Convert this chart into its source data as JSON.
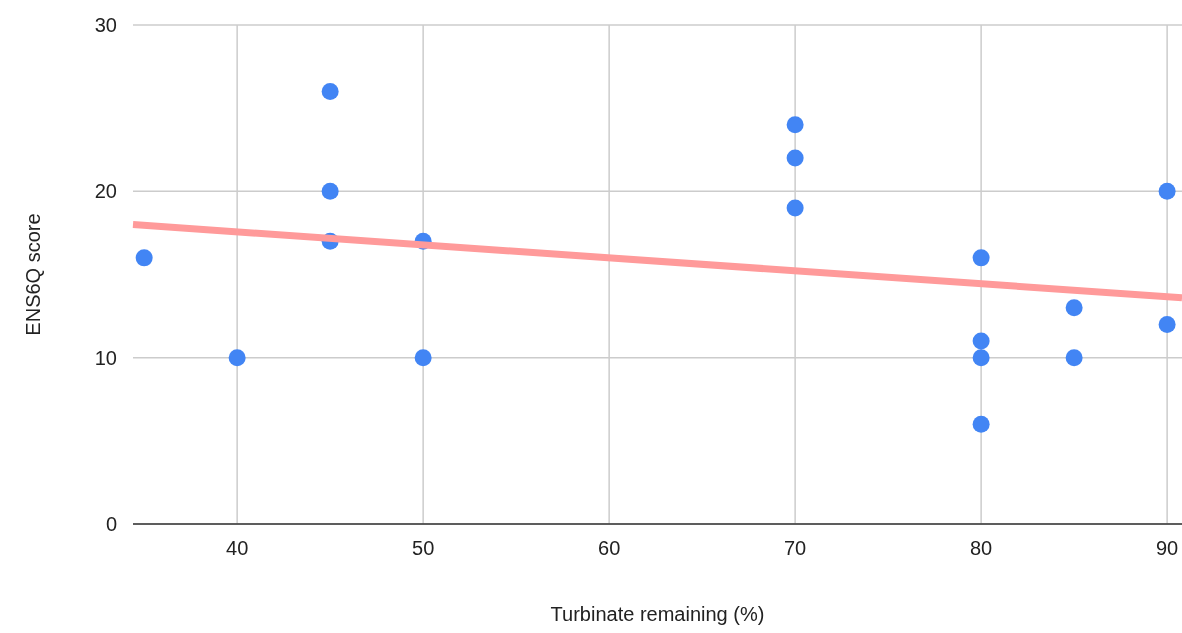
{
  "chart_data": {
    "type": "scatter",
    "xlabel": "Turbinate remaining (%)",
    "ylabel": "ENS6Q score",
    "xlim": [
      34.4,
      90.8
    ],
    "xticks": [
      40,
      50,
      60,
      70,
      80,
      90
    ],
    "ylim": [
      0,
      30
    ],
    "yticks": [
      0,
      10,
      20,
      30
    ],
    "grid": true,
    "series": [
      {
        "marker": "circle",
        "color": "#4285f4",
        "x": [
          35,
          40,
          45,
          45,
          45,
          50,
          50,
          70,
          70,
          70,
          80,
          80,
          80,
          80,
          85,
          85,
          90,
          90
        ],
        "values": [
          16,
          10,
          26,
          20,
          17,
          17,
          10,
          24,
          22,
          19,
          16,
          11,
          10,
          6,
          13,
          10,
          20,
          12
        ]
      },
      {
        "type": "line",
        "marker": "none",
        "color": "#ff9a9a",
        "x": [
          34.4,
          90.8
        ],
        "values": [
          18.0,
          13.6
        ]
      }
    ]
  }
}
